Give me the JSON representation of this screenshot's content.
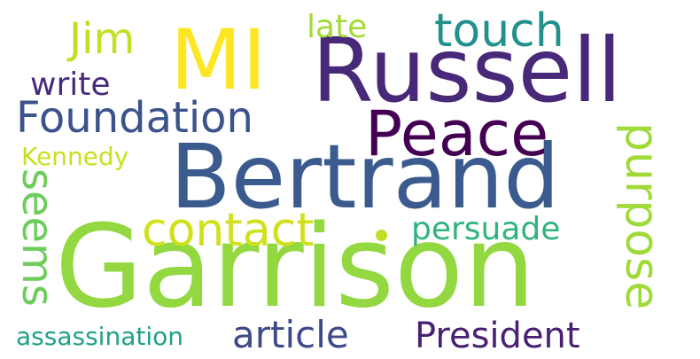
{
  "background": "#ffffff",
  "words": {
    "garrison": {
      "text": "Garrison",
      "color": "#93d741"
    },
    "bertrand": {
      "text": "Bertrand",
      "color": "#3b5a8d"
    },
    "russell": {
      "text": "Russell",
      "color": "#482878"
    },
    "mi": {
      "text": "MI",
      "color": "#fde725"
    },
    "peace": {
      "text": "Peace",
      "color": "#440154"
    },
    "foundation": {
      "text": "Foundation",
      "color": "#3b528b"
    },
    "contact": {
      "text": "contact",
      "color": "#d0e11c"
    },
    "touch": {
      "text": "touch",
      "color": "#21918c"
    },
    "purpose": {
      "text": "purpose",
      "color": "#a0da39"
    },
    "seems": {
      "text": "seems",
      "color": "#6ccd5a"
    },
    "jim": {
      "text": "Jim",
      "color": "#c2df23"
    },
    "article": {
      "text": "article",
      "color": "#3e4989"
    },
    "president": {
      "text": "President",
      "color": "#482173"
    },
    "persuade": {
      "text": "persuade",
      "color": "#2fb47c"
    },
    "write": {
      "text": "write",
      "color": "#472a7a"
    },
    "late": {
      "text": "late",
      "color": "#a2da37"
    },
    "kennedy": {
      "text": "Kennedy",
      "color": "#c8e020"
    },
    "assassination": {
      "text": "assassination",
      "color": "#1fa188"
    }
  },
  "dot": {
    "color": "#bddf26"
  }
}
